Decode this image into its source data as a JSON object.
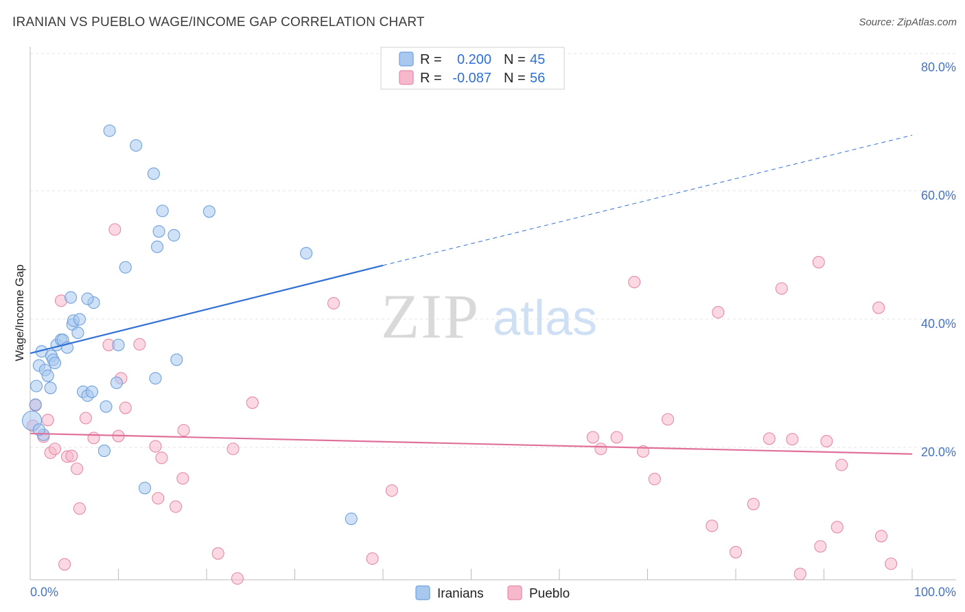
{
  "title": "IRANIAN VS PUEBLO WAGE/INCOME GAP CORRELATION CHART",
  "source": "Source: ZipAtlas.com",
  "watermark": {
    "zip": "ZIP",
    "atlas": "atlas"
  },
  "chart_data": {
    "type": "scatter",
    "title": "IRANIAN VS PUEBLO WAGE/INCOME GAP CORRELATION CHART",
    "xlabel": "",
    "ylabel": "Wage/Income Gap",
    "xlim": [
      0,
      100
    ],
    "ylim": [
      0,
      80
    ],
    "x_tick_labels": [
      "0.0%",
      "100.0%"
    ],
    "y_ticks": [
      20,
      40,
      60,
      80
    ],
    "y_tick_labels": [
      "20.0%",
      "40.0%",
      "60.0%",
      "80.0%"
    ],
    "grid": true,
    "legend": [
      {
        "name": "Iranians",
        "r_label": "R =",
        "r_value": "0.200",
        "n_label": "N =",
        "n_value": "45",
        "color": "#a8c8f0",
        "stroke": "#6fa0dc"
      },
      {
        "name": "Pueblo",
        "r_label": "R =",
        "r_value": "-0.087",
        "n_label": "N =",
        "n_value": "56",
        "color": "#f7b8cb",
        "stroke": "#e48aa8"
      }
    ],
    "series": [
      {
        "name": "Iranians",
        "color": "#a8c8f0",
        "stroke": "#6fa0dc",
        "trend_color": "#2f6fd6",
        "trend": {
          "x0": 0,
          "y0": 35.3,
          "x1": 40,
          "y1": 49.0,
          "x_dash_end": 100,
          "y_dash_end": 69.3
        },
        "points": [
          [
            0.2,
            24.8
          ],
          [
            0.6,
            27.3
          ],
          [
            0.7,
            30.2
          ],
          [
            1.0,
            33.4
          ],
          [
            1.3,
            35.6
          ],
          [
            1.5,
            22.6
          ],
          [
            1.7,
            32.7
          ],
          [
            2.0,
            31.8
          ],
          [
            2.3,
            29.9
          ],
          [
            2.4,
            34.9
          ],
          [
            2.6,
            34.3
          ],
          [
            2.8,
            33.8
          ],
          [
            3.0,
            36.6
          ],
          [
            3.5,
            37.4
          ],
          [
            3.7,
            37.4
          ],
          [
            4.2,
            36.2
          ],
          [
            4.8,
            39.8
          ],
          [
            4.9,
            40.4
          ],
          [
            5.4,
            38.5
          ],
          [
            5.6,
            40.6
          ],
          [
            6.0,
            29.3
          ],
          [
            6.5,
            28.7
          ],
          [
            7.0,
            29.3
          ],
          [
            7.2,
            43.2
          ],
          [
            4.6,
            44.0
          ],
          [
            6.5,
            43.8
          ],
          [
            8.4,
            20.1
          ],
          [
            8.6,
            27.0
          ],
          [
            9.0,
            70.0
          ],
          [
            9.8,
            30.7
          ],
          [
            10.0,
            36.6
          ],
          [
            10.8,
            48.7
          ],
          [
            12.0,
            67.7
          ],
          [
            13.0,
            14.3
          ],
          [
            14.0,
            63.3
          ],
          [
            14.2,
            31.4
          ],
          [
            14.4,
            51.9
          ],
          [
            14.6,
            54.3
          ],
          [
            15.0,
            57.5
          ],
          [
            16.3,
            53.7
          ],
          [
            16.6,
            34.3
          ],
          [
            20.3,
            57.4
          ],
          [
            31.3,
            50.9
          ],
          [
            36.4,
            9.5
          ],
          [
            1.0,
            23.4
          ]
        ]
      },
      {
        "name": "Pueblo",
        "color": "#f7b8cb",
        "stroke": "#e48aa8",
        "trend_color": "#e0709a",
        "trend": {
          "x0": 0,
          "y0": 22.8,
          "x1": 100,
          "y1": 19.6
        },
        "points": [
          [
            0.6,
            27.2
          ],
          [
            1.5,
            22.3
          ],
          [
            2.0,
            24.9
          ],
          [
            2.3,
            19.8
          ],
          [
            2.8,
            20.4
          ],
          [
            3.5,
            43.5
          ],
          [
            3.9,
            2.4
          ],
          [
            4.2,
            19.2
          ],
          [
            4.7,
            19.3
          ],
          [
            5.3,
            17.3
          ],
          [
            5.6,
            11.1
          ],
          [
            6.3,
            25.2
          ],
          [
            7.2,
            22.1
          ],
          [
            8.9,
            36.6
          ],
          [
            9.6,
            54.6
          ],
          [
            10.0,
            22.4
          ],
          [
            10.3,
            31.4
          ],
          [
            10.8,
            26.8
          ],
          [
            12.4,
            36.7
          ],
          [
            14.2,
            20.8
          ],
          [
            14.5,
            12.7
          ],
          [
            14.9,
            19.0
          ],
          [
            16.5,
            11.4
          ],
          [
            17.3,
            15.8
          ],
          [
            17.4,
            23.3
          ],
          [
            21.3,
            4.1
          ],
          [
            23.0,
            20.4
          ],
          [
            23.5,
            0.2
          ],
          [
            25.2,
            27.6
          ],
          [
            34.4,
            43.1
          ],
          [
            38.8,
            3.3
          ],
          [
            41.0,
            13.9
          ],
          [
            63.8,
            22.2
          ],
          [
            64.7,
            20.4
          ],
          [
            66.5,
            22.2
          ],
          [
            68.5,
            46.4
          ],
          [
            69.5,
            20.0
          ],
          [
            70.8,
            15.7
          ],
          [
            72.3,
            25.0
          ],
          [
            77.3,
            8.4
          ],
          [
            78.0,
            41.7
          ],
          [
            80.0,
            4.3
          ],
          [
            82.0,
            11.8
          ],
          [
            83.8,
            22.0
          ],
          [
            85.2,
            45.4
          ],
          [
            86.4,
            21.9
          ],
          [
            87.3,
            0.9
          ],
          [
            89.4,
            49.5
          ],
          [
            89.6,
            5.2
          ],
          [
            90.3,
            21.6
          ],
          [
            91.5,
            8.2
          ],
          [
            92.0,
            17.9
          ],
          [
            96.2,
            42.4
          ],
          [
            96.5,
            6.8
          ],
          [
            97.6,
            2.5
          ],
          [
            0.3,
            24.0
          ]
        ]
      }
    ]
  }
}
